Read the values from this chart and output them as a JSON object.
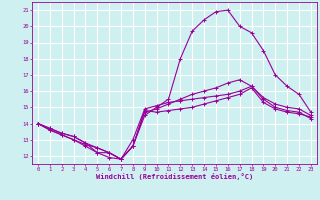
{
  "title": "",
  "xlabel": "Windchill (Refroidissement éolien,°C)",
  "ylabel": "",
  "bg_color": "#cff0f0",
  "line_color": "#990099",
  "grid_color": "#ffffff",
  "x_ticks": [
    0,
    1,
    2,
    3,
    4,
    5,
    6,
    7,
    8,
    9,
    10,
    11,
    12,
    13,
    14,
    15,
    16,
    17,
    18,
    19,
    20,
    21,
    22,
    23
  ],
  "y_ticks": [
    12,
    13,
    14,
    15,
    16,
    17,
    18,
    19,
    20,
    21
  ],
  "xlim": [
    -0.5,
    23.5
  ],
  "ylim": [
    11.5,
    21.5
  ],
  "series": [
    [
      14.0,
      13.7,
      13.4,
      13.2,
      12.8,
      12.5,
      12.2,
      11.8,
      12.6,
      14.8,
      14.7,
      14.8,
      14.9,
      15.0,
      15.2,
      15.4,
      15.6,
      15.8,
      16.2,
      15.3,
      14.9,
      14.7,
      14.6,
      14.4
    ],
    [
      14.0,
      13.7,
      13.4,
      13.2,
      12.8,
      12.2,
      12.2,
      11.8,
      13.0,
      14.9,
      15.1,
      15.3,
      15.4,
      15.5,
      15.6,
      15.7,
      15.8,
      16.0,
      16.3,
      15.5,
      15.0,
      14.8,
      14.7,
      14.3
    ],
    [
      14.0,
      13.6,
      13.3,
      13.0,
      12.7,
      12.5,
      12.2,
      11.8,
      12.6,
      14.7,
      14.9,
      15.2,
      15.5,
      15.8,
      16.0,
      16.2,
      16.5,
      16.7,
      16.3,
      15.6,
      15.2,
      15.0,
      14.9,
      14.5
    ],
    [
      14.0,
      13.6,
      13.3,
      13.0,
      12.6,
      12.2,
      11.9,
      11.8,
      12.6,
      14.5,
      15.0,
      15.5,
      18.0,
      19.7,
      20.4,
      20.9,
      21.0,
      20.0,
      19.6,
      18.5,
      17.0,
      16.3,
      15.8,
      14.7
    ]
  ]
}
